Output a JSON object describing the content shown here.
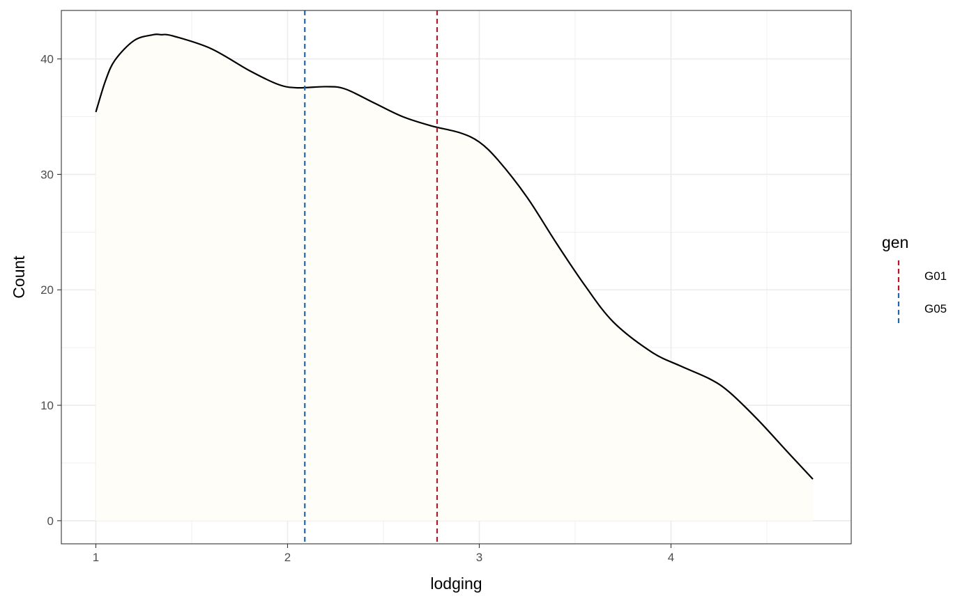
{
  "chart_data": {
    "type": "area",
    "xlabel": "lodging",
    "ylabel": "Count",
    "xlim": [
      0.82,
      4.94
    ],
    "ylim": [
      -2,
      44.2
    ],
    "x_ticks": [
      1,
      2,
      3,
      4
    ],
    "y_ticks": [
      0,
      10,
      20,
      30,
      40
    ],
    "grid": true,
    "legend": {
      "title": "gen",
      "position": "right",
      "items": [
        {
          "label": "G01",
          "color": "#b2182b"
        },
        {
          "label": "G05",
          "color": "#2166ac"
        }
      ]
    },
    "density_curve": {
      "line_color": "#000000",
      "fill_color": "#fffdf8",
      "x": [
        1.0,
        1.05,
        1.1,
        1.2,
        1.3,
        1.34,
        1.4,
        1.6,
        1.8,
        1.95,
        2.05,
        2.2,
        2.3,
        2.45,
        2.6,
        2.75,
        2.9,
        3.0,
        3.1,
        3.25,
        3.4,
        3.55,
        3.7,
        3.9,
        4.05,
        4.2,
        4.3,
        4.45,
        4.6,
        4.74
      ],
      "y": [
        35.4,
        38.1,
        39.9,
        41.6,
        42.1,
        42.1,
        42.0,
        40.9,
        39.0,
        37.8,
        37.5,
        37.6,
        37.4,
        36.2,
        35.0,
        34.2,
        33.6,
        32.8,
        31.2,
        28.0,
        24.1,
        20.4,
        17.2,
        14.6,
        13.4,
        12.3,
        11.2,
        8.8,
        6.1,
        3.6
      ]
    },
    "vlines": [
      {
        "series": "G05",
        "x": 2.09,
        "color": "#2166ac",
        "style": "dashed"
      },
      {
        "series": "G01",
        "x": 2.78,
        "color": "#b2182b",
        "style": "dashed"
      }
    ]
  }
}
